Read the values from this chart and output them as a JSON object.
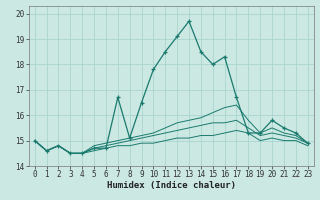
{
  "title": "",
  "xlabel": "Humidex (Indice chaleur)",
  "background_color": "#cbe8e3",
  "grid_color": "#aad6d0",
  "line_color": "#1a7a6e",
  "xlim": [
    -0.5,
    23.5
  ],
  "ylim": [
    14,
    20.3
  ],
  "yticks": [
    14,
    15,
    16,
    17,
    18,
    19,
    20
  ],
  "xticks": [
    0,
    1,
    2,
    3,
    4,
    5,
    6,
    7,
    8,
    9,
    10,
    11,
    12,
    13,
    14,
    15,
    16,
    17,
    18,
    19,
    20,
    21,
    22,
    23
  ],
  "series": [
    [
      15.0,
      14.6,
      14.8,
      14.5,
      14.5,
      14.7,
      14.7,
      16.7,
      15.1,
      16.5,
      17.8,
      18.5,
      19.1,
      19.7,
      18.5,
      18.0,
      18.3,
      16.7,
      15.3,
      15.3,
      15.8,
      15.5,
      15.3,
      14.9
    ],
    [
      15.0,
      14.6,
      14.8,
      14.5,
      14.5,
      14.8,
      14.9,
      15.0,
      15.1,
      15.2,
      15.3,
      15.5,
      15.7,
      15.8,
      15.9,
      16.1,
      16.3,
      16.4,
      15.8,
      15.3,
      15.5,
      15.3,
      15.2,
      14.9
    ],
    [
      15.0,
      14.6,
      14.8,
      14.5,
      14.5,
      14.7,
      14.8,
      14.9,
      15.0,
      15.1,
      15.2,
      15.3,
      15.4,
      15.5,
      15.6,
      15.7,
      15.7,
      15.8,
      15.5,
      15.2,
      15.3,
      15.2,
      15.1,
      14.9
    ],
    [
      15.0,
      14.6,
      14.8,
      14.5,
      14.5,
      14.6,
      14.7,
      14.8,
      14.8,
      14.9,
      14.9,
      15.0,
      15.1,
      15.1,
      15.2,
      15.2,
      15.3,
      15.4,
      15.3,
      15.0,
      15.1,
      15.0,
      15.0,
      14.8
    ]
  ]
}
